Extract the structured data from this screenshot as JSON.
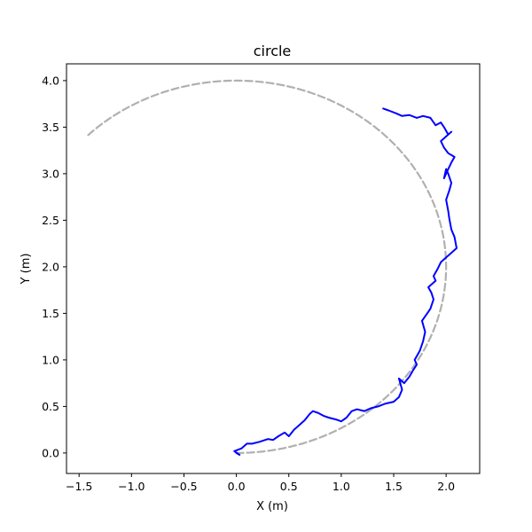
{
  "chart_data": {
    "type": "line",
    "title": "circle",
    "xlabel": "X (m)",
    "ylabel": "Y (m)",
    "xlim": [
      -1.62,
      2.32
    ],
    "ylim": [
      -0.22,
      4.18
    ],
    "xticks": [
      -1.5,
      -1.0,
      -0.5,
      0.0,
      0.5,
      1.0,
      1.5,
      2.0
    ],
    "xtick_labels": [
      "−1.5",
      "−1.0",
      "−0.5",
      "0.0",
      "0.5",
      "1.0",
      "1.5",
      "2.0"
    ],
    "yticks": [
      0.0,
      0.5,
      1.0,
      1.5,
      2.0,
      2.5,
      3.0,
      3.5,
      4.0
    ],
    "ytick_labels": [
      "0.0",
      "0.5",
      "1.0",
      "1.5",
      "2.0",
      "2.5",
      "3.0",
      "3.5",
      "4.0"
    ],
    "grid": false,
    "legend": "none",
    "series": [
      {
        "style": "dashed",
        "color": "#b0b0b0",
        "shape": "circle-arc",
        "center": [
          0.0,
          2.0
        ],
        "radius": 2.0,
        "start_angle_deg": -90,
        "end_angle_deg": 135
      },
      {
        "style": "solid",
        "color": "#0000ff",
        "x": [
          0.0,
          0.03,
          -0.02,
          0.05,
          0.1,
          0.15,
          0.22,
          0.3,
          0.35,
          0.4,
          0.46,
          0.5,
          0.55,
          0.6,
          0.65,
          0.7,
          0.73,
          0.78,
          0.83,
          0.88,
          0.95,
          1.0,
          1.05,
          1.1,
          1.15,
          1.22,
          1.28,
          1.35,
          1.42,
          1.5,
          1.55,
          1.58,
          1.55,
          1.6,
          1.65,
          1.68,
          1.72,
          1.7,
          1.75,
          1.78,
          1.8,
          1.77,
          1.82,
          1.85,
          1.88,
          1.86,
          1.83,
          1.87,
          1.9,
          1.88,
          1.92,
          1.95,
          2.0,
          2.05,
          2.1,
          2.08,
          2.05,
          2.03,
          2.02,
          2.0,
          2.03,
          2.05,
          2.02,
          2.0,
          1.98,
          2.02,
          2.05,
          2.08,
          2.02,
          1.98,
          1.95,
          2.0,
          2.05,
          2.02,
          1.98,
          1.95,
          1.9,
          1.85,
          1.78,
          1.72,
          1.65,
          1.58,
          1.52,
          1.45,
          1.4
        ],
        "y": [
          0.0,
          -0.02,
          0.02,
          0.05,
          0.1,
          0.1,
          0.12,
          0.15,
          0.14,
          0.18,
          0.22,
          0.18,
          0.25,
          0.3,
          0.35,
          0.42,
          0.45,
          0.43,
          0.4,
          0.38,
          0.36,
          0.34,
          0.38,
          0.45,
          0.47,
          0.45,
          0.48,
          0.5,
          0.53,
          0.55,
          0.6,
          0.68,
          0.8,
          0.75,
          0.82,
          0.88,
          0.95,
          1.0,
          1.1,
          1.2,
          1.3,
          1.42,
          1.5,
          1.55,
          1.65,
          1.72,
          1.78,
          1.82,
          1.85,
          1.9,
          1.98,
          2.05,
          2.1,
          2.15,
          2.2,
          2.32,
          2.4,
          2.52,
          2.6,
          2.72,
          2.82,
          2.9,
          3.0,
          3.05,
          2.95,
          3.05,
          3.12,
          3.18,
          3.22,
          3.28,
          3.35,
          3.4,
          3.45,
          3.42,
          3.5,
          3.55,
          3.52,
          3.6,
          3.62,
          3.6,
          3.63,
          3.62,
          3.65,
          3.68,
          3.7
        ]
      }
    ]
  }
}
